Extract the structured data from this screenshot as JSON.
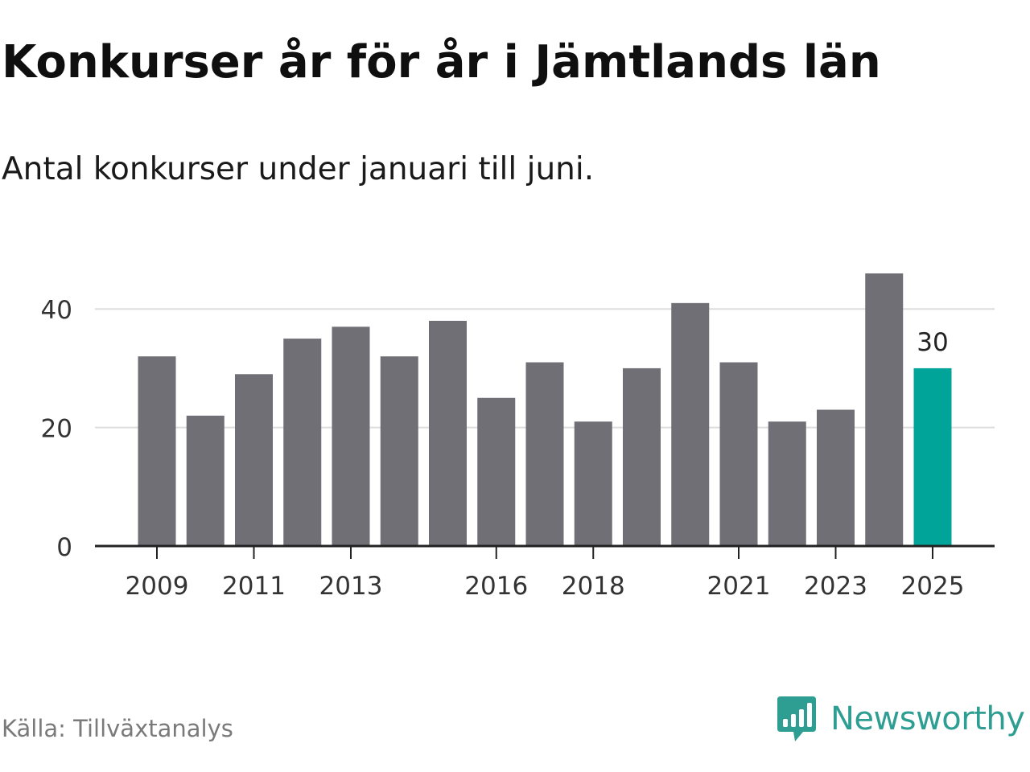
{
  "header": {
    "title": "Konkurser år för år i Jämtlands län",
    "subtitle": "Antal konkurser under januari till juni."
  },
  "footer": {
    "source": "Källa: Tillväxtanalys",
    "brand": "Newsworthy",
    "brand_icon": "bar-chart-speech-bubble-icon"
  },
  "colors": {
    "bar": "#706f75",
    "highlight": "#00a499",
    "grid": "#dddddd",
    "axis": "#222222",
    "brand": "#2e9e92"
  },
  "chart_data": {
    "type": "bar",
    "categories": [
      "2009",
      "2010",
      "2011",
      "2012",
      "2013",
      "2014",
      "2015",
      "2016",
      "2017",
      "2018",
      "2019",
      "2020",
      "2021",
      "2022",
      "2023",
      "2024",
      "2025"
    ],
    "values": [
      32,
      22,
      29,
      35,
      37,
      32,
      38,
      25,
      31,
      21,
      30,
      41,
      31,
      21,
      23,
      46,
      30
    ],
    "x_tick_labels": [
      "2009",
      "2011",
      "2013",
      "2016",
      "2018",
      "2021",
      "2023",
      "2025"
    ],
    "y_ticks": [
      0,
      20,
      40
    ],
    "ylim": [
      0,
      46
    ],
    "highlight_category": "2025",
    "data_labels": [
      {
        "category": "2025",
        "text": "30"
      }
    ],
    "grid": true,
    "xlabel": "",
    "ylabel": ""
  }
}
